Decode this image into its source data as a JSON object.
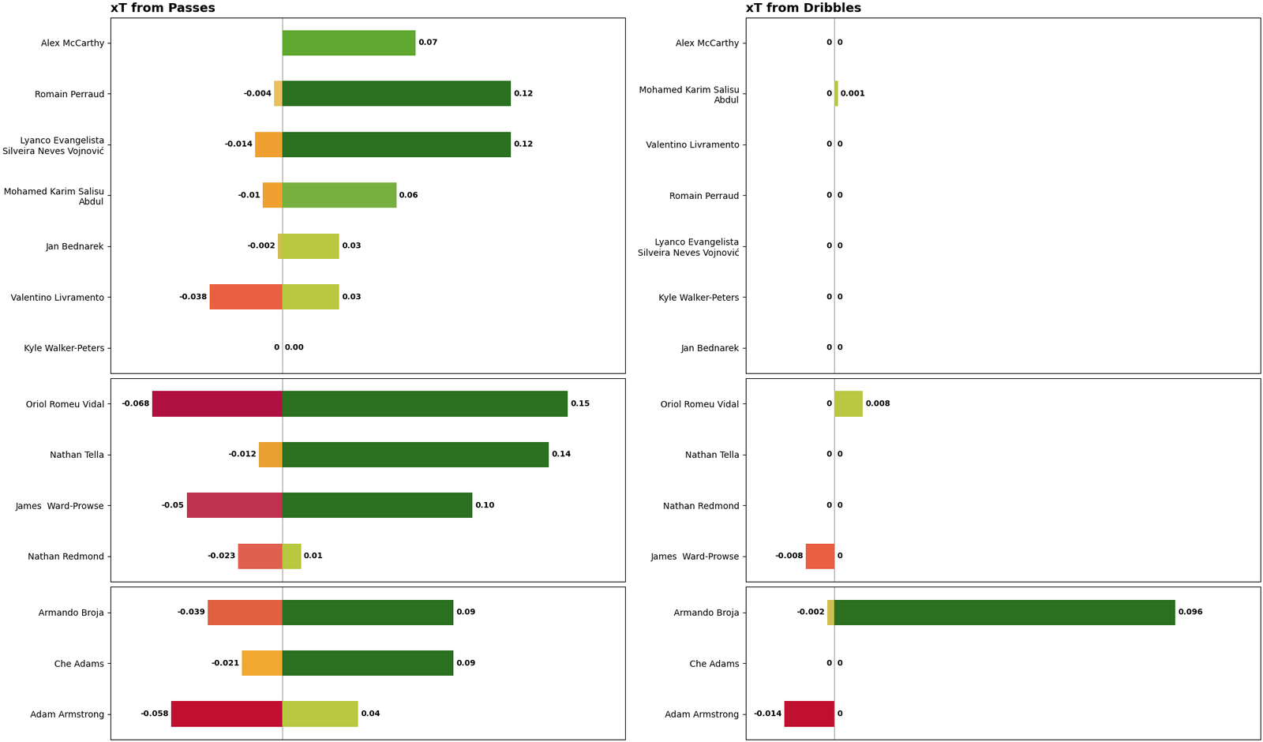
{
  "chart_data": [
    {
      "type": "bar",
      "orientation": "horizontal",
      "title": "xT from Passes",
      "categories": [
        "Alex McCarthy",
        "Romain Perraud",
        "Lyanco Evangelista\nSilveira Neves Vojnović",
        "Mohamed Karim Salisu\nAbdul",
        "Jan Bednarek",
        "Valentino Livramento",
        "Kyle Walker-Peters"
      ],
      "series": [
        {
          "values": [
            0,
            -0.004,
            -0.014,
            -0.01,
            -0.002,
            -0.038,
            0
          ],
          "value_labels": [
            null,
            "-0.004",
            "-0.014",
            "-0.01",
            "-0.002",
            "-0.038",
            "0"
          ],
          "colors": [
            "#ffffff",
            "#e8c060",
            "#f0a030",
            "#f0a030",
            "#d0be50",
            "#e86040",
            "#ffffff"
          ]
        },
        {
          "values": [
            0.07,
            0.12,
            0.12,
            0.06,
            0.03,
            0.03,
            0.0
          ],
          "value_labels": [
            "0.07",
            "0.12",
            "0.12",
            "0.06",
            "0.03",
            "0.03",
            "0.00"
          ],
          "colors": [
            "#60a830",
            "#2a7020",
            "#2a7020",
            "#78b040",
            "#b8c840",
            "#b8c840",
            "#ffffff"
          ]
        }
      ],
      "xlim": [
        -0.09,
        0.18
      ],
      "data_labels": true,
      "tick_labels": "y"
    },
    {
      "type": "bar",
      "orientation": "horizontal",
      "title": "xT from Dribbles",
      "categories": [
        "Alex McCarthy",
        "Mohamed Karim Salisu\nAbdul",
        "Valentino Livramento",
        "Romain Perraud",
        "Lyanco Evangelista\nSilveira Neves Vojnović",
        "Kyle Walker-Peters",
        "Jan Bednarek"
      ],
      "series": [
        {
          "values": [
            0,
            0,
            0,
            0,
            0,
            0,
            0
          ],
          "value_labels": [
            "0",
            "0",
            "0",
            "0",
            "0",
            "0",
            "0"
          ],
          "colors": [
            "#ffffff",
            "#ffffff",
            "#ffffff",
            "#ffffff",
            "#ffffff",
            "#ffffff",
            "#ffffff"
          ]
        },
        {
          "values": [
            0,
            0.001,
            0,
            0,
            0,
            0,
            0
          ],
          "value_labels": [
            "0",
            "0.001",
            "0",
            "0",
            "0",
            "0",
            "0"
          ],
          "colors": [
            "#ffffff",
            "#b8c840",
            "#ffffff",
            "#ffffff",
            "#ffffff",
            "#ffffff",
            "#ffffff"
          ]
        }
      ],
      "xlim": [
        -0.025,
        0.12
      ],
      "data_labels": true,
      "tick_labels": "y"
    },
    {
      "type": "bar",
      "orientation": "horizontal",
      "categories": [
        "Oriol Romeu Vidal",
        "Nathan Tella",
        "James  Ward-Prowse",
        "Nathan Redmond"
      ],
      "series": [
        {
          "values": [
            -0.068,
            -0.012,
            -0.05,
            -0.023
          ],
          "value_labels": [
            "-0.068",
            "-0.012",
            "-0.05",
            "-0.023"
          ],
          "colors": [
            "#b01040",
            "#e8a030",
            "#c03050",
            "#e06050"
          ]
        },
        {
          "values": [
            0.15,
            0.14,
            0.1,
            0.01
          ],
          "value_labels": [
            "0.15",
            "0.14",
            "0.10",
            "0.01"
          ],
          "colors": [
            "#2a7020",
            "#2a7020",
            "#2a7020",
            "#b8c840"
          ]
        }
      ],
      "xlim": [
        -0.09,
        0.18
      ],
      "data_labels": true,
      "tick_labels": "y"
    },
    {
      "type": "bar",
      "orientation": "horizontal",
      "categories": [
        "Oriol Romeu Vidal",
        "Nathan Tella",
        "Nathan Redmond",
        "James  Ward-Prowse"
      ],
      "series": [
        {
          "values": [
            0,
            0,
            0,
            -0.008
          ],
          "value_labels": [
            "0",
            "0",
            "0",
            "-0.008"
          ],
          "colors": [
            "#ffffff",
            "#ffffff",
            "#ffffff",
            "#e86040"
          ]
        },
        {
          "values": [
            0.008,
            0,
            0,
            0
          ],
          "value_labels": [
            "0.008",
            "0",
            "0",
            "0"
          ],
          "colors": [
            "#b8c840",
            "#ffffff",
            "#ffffff",
            "#ffffff"
          ]
        }
      ],
      "xlim": [
        -0.025,
        0.12
      ],
      "data_labels": true,
      "tick_labels": "y"
    },
    {
      "type": "bar",
      "orientation": "horizontal",
      "categories": [
        "Armando Broja",
        "Che Adams",
        "Adam Armstrong"
      ],
      "series": [
        {
          "values": [
            -0.039,
            -0.021,
            -0.058
          ],
          "value_labels": [
            "-0.039",
            "-0.021",
            "-0.058"
          ],
          "colors": [
            "#e06040",
            "#f0a830",
            "#c01030"
          ]
        },
        {
          "values": [
            0.09,
            0.09,
            0.04
          ],
          "value_labels": [
            "0.09",
            "0.09",
            "0.04"
          ],
          "colors": [
            "#2a7020",
            "#2a7020",
            "#b8c840"
          ]
        }
      ],
      "xlim": [
        -0.09,
        0.18
      ],
      "data_labels": true,
      "tick_labels": "y"
    },
    {
      "type": "bar",
      "orientation": "horizontal",
      "categories": [
        "Armando Broja",
        "Che Adams",
        "Adam Armstrong"
      ],
      "series": [
        {
          "values": [
            -0.002,
            0,
            -0.014
          ],
          "value_labels": [
            "-0.002",
            "0",
            "-0.014"
          ],
          "colors": [
            "#d0be50",
            "#ffffff",
            "#c01030"
          ]
        },
        {
          "values": [
            0.096,
            0,
            0
          ],
          "value_labels": [
            "0.096",
            "0",
            "0"
          ],
          "colors": [
            "#2a7020",
            "#ffffff",
            "#ffffff"
          ]
        }
      ],
      "xlim": [
        -0.025,
        0.12
      ],
      "data_labels": true,
      "tick_labels": "y"
    }
  ]
}
